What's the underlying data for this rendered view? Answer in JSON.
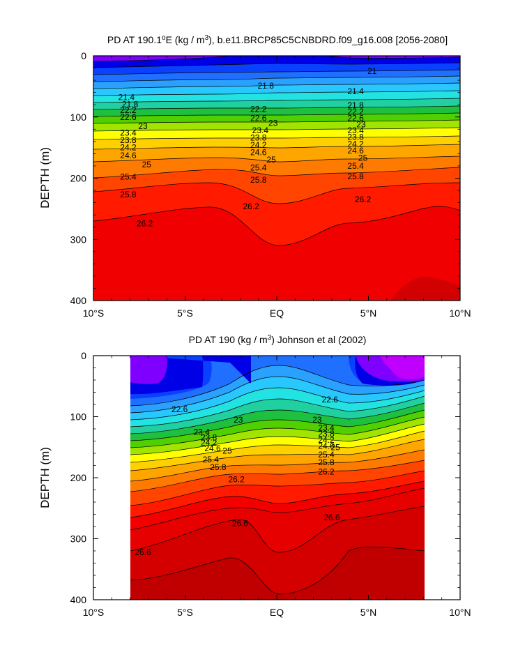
{
  "chart_data": [
    {
      "type": "contour",
      "title": "PD AT 190.1°E (kg / m³), b.e11.BRCP85C5CNBDRD.f09_g16.008 [2056-2080]",
      "ylabel": "DEPTH (m)",
      "xlabel": "",
      "x_ticks": [
        "10°S",
        "5°S",
        "EQ",
        "5°N",
        "10°N"
      ],
      "y_ticks": [
        "0",
        "100",
        "200",
        "300",
        "400"
      ],
      "xlim": [
        -10,
        10
      ],
      "ylim": [
        0,
        400
      ],
      "y_inverted": true,
      "grid": false,
      "data_extent_x": [
        -10,
        10
      ],
      "contour_labels": [
        {
          "text": "21",
          "x": 5.2,
          "y": 25
        },
        {
          "text": "21.4",
          "x": -8.2,
          "y": 68
        },
        {
          "text": "21.8",
          "x": -8.0,
          "y": 79
        },
        {
          "text": "22.2",
          "x": -8.1,
          "y": 89
        },
        {
          "text": "22.6",
          "x": -8.1,
          "y": 100
        },
        {
          "text": "23",
          "x": -7.3,
          "y": 115
        },
        {
          "text": "23.4",
          "x": -8.1,
          "y": 126
        },
        {
          "text": "23.8",
          "x": -8.1,
          "y": 138
        },
        {
          "text": "24.2",
          "x": -8.1,
          "y": 150
        },
        {
          "text": "24.6",
          "x": -8.1,
          "y": 163
        },
        {
          "text": "25",
          "x": -7.1,
          "y": 178
        },
        {
          "text": "25.4",
          "x": -8.1,
          "y": 198
        },
        {
          "text": "25.8",
          "x": -8.1,
          "y": 227
        },
        {
          "text": "26.2",
          "x": -7.2,
          "y": 274
        },
        {
          "text": "21.8",
          "x": -0.6,
          "y": 49
        },
        {
          "text": "22.2",
          "x": -1.0,
          "y": 87
        },
        {
          "text": "22.6",
          "x": -1.0,
          "y": 102
        },
        {
          "text": "23",
          "x": -0.2,
          "y": 110
        },
        {
          "text": "23.4",
          "x": -0.9,
          "y": 122
        },
        {
          "text": "23.8",
          "x": -1.0,
          "y": 134
        },
        {
          "text": "24.2",
          "x": -1.0,
          "y": 146
        },
        {
          "text": "24.6",
          "x": -1.0,
          "y": 158
        },
        {
          "text": "25",
          "x": -0.3,
          "y": 170
        },
        {
          "text": "25.4",
          "x": -1.0,
          "y": 183
        },
        {
          "text": "25.8",
          "x": -1.0,
          "y": 203
        },
        {
          "text": "26.2",
          "x": -1.4,
          "y": 246
        },
        {
          "text": "21.4",
          "x": 4.3,
          "y": 58
        },
        {
          "text": "21.8",
          "x": 4.3,
          "y": 81
        },
        {
          "text": "22.2",
          "x": 4.3,
          "y": 91
        },
        {
          "text": "22.6",
          "x": 4.3,
          "y": 102
        },
        {
          "text": "23",
          "x": 4.6,
          "y": 112
        },
        {
          "text": "23.4",
          "x": 4.3,
          "y": 122
        },
        {
          "text": "23.8",
          "x": 4.3,
          "y": 133
        },
        {
          "text": "24.2",
          "x": 4.3,
          "y": 144
        },
        {
          "text": "24.6",
          "x": 4.3,
          "y": 155
        },
        {
          "text": "25",
          "x": 4.7,
          "y": 167
        },
        {
          "text": "25.4",
          "x": 4.3,
          "y": 180
        },
        {
          "text": "25.8",
          "x": 4.3,
          "y": 197
        },
        {
          "text": "26.2",
          "x": 4.7,
          "y": 235
        }
      ]
    },
    {
      "type": "contour",
      "title": "PD AT 190 (kg / m³) Johnson et al (2002)",
      "ylabel": "DEPTH (m)",
      "xlabel": "",
      "x_ticks": [
        "10°S",
        "5°S",
        "EQ",
        "5°N",
        "10°N"
      ],
      "y_ticks": [
        "0",
        "100",
        "200",
        "300",
        "400"
      ],
      "xlim": [
        -10,
        10
      ],
      "ylim": [
        0,
        400
      ],
      "y_inverted": true,
      "grid": false,
      "data_extent_x": [
        -8,
        8
      ],
      "contour_labels": [
        {
          "text": "22.6",
          "x": -5.3,
          "y": 88
        },
        {
          "text": "23",
          "x": -2.1,
          "y": 105
        },
        {
          "text": "23.4",
          "x": -4.1,
          "y": 125
        },
        {
          "text": "23.8",
          "x": -3.7,
          "y": 134
        },
        {
          "text": "24.2",
          "x": -3.7,
          "y": 143
        },
        {
          "text": "24.6",
          "x": -3.5,
          "y": 152
        },
        {
          "text": "25",
          "x": -2.7,
          "y": 156
        },
        {
          "text": "25.4",
          "x": -3.6,
          "y": 170
        },
        {
          "text": "25.8",
          "x": -3.2,
          "y": 183
        },
        {
          "text": "26.2",
          "x": -2.2,
          "y": 203
        },
        {
          "text": "26.6",
          "x": -2.0,
          "y": 275
        },
        {
          "text": "26.6",
          "x": -7.3,
          "y": 322
        },
        {
          "text": "22.6",
          "x": 2.9,
          "y": 72
        },
        {
          "text": "23",
          "x": 2.2,
          "y": 105
        },
        {
          "text": "23.4",
          "x": 2.7,
          "y": 118
        },
        {
          "text": "23.8",
          "x": 2.7,
          "y": 128
        },
        {
          "text": "24.2",
          "x": 2.7,
          "y": 138
        },
        {
          "text": "24.6",
          "x": 2.7,
          "y": 148
        },
        {
          "text": "25",
          "x": 3.2,
          "y": 150
        },
        {
          "text": "25.4",
          "x": 2.7,
          "y": 162
        },
        {
          "text": "25.8",
          "x": 2.7,
          "y": 175
        },
        {
          "text": "26.2",
          "x": 2.7,
          "y": 190
        },
        {
          "text": "26.6",
          "x": 3.0,
          "y": 265
        }
      ]
    }
  ],
  "colors": {
    "background": "#ffffff",
    "axes": "#000000",
    "fill_levels": [
      "#4d4d4d",
      "#a9a9a9",
      "#ff00ff",
      "#c000ff",
      "#7f00ff",
      "#0000e6",
      "#0a40ff",
      "#2070ff",
      "#2aa0ff",
      "#28c8ff",
      "#22e2e2",
      "#20d0a0",
      "#1ec040",
      "#50d000",
      "#a0e400",
      "#ffff00",
      "#ffd000",
      "#ffa500",
      "#ff7a00",
      "#ff4500",
      "#ff1a00",
      "#f00000",
      "#d80000",
      "#c00000"
    ]
  }
}
